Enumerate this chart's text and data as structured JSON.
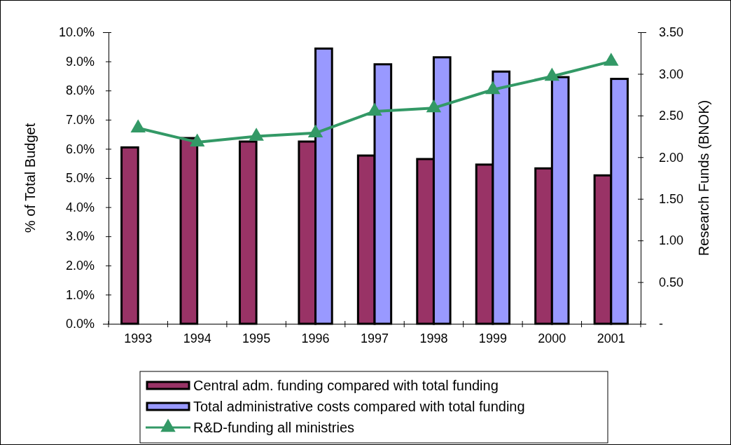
{
  "chart_data": {
    "type": "bar",
    "categories": [
      "1993",
      "1994",
      "1995",
      "1996",
      "1997",
      "1998",
      "1999",
      "2000",
      "2001"
    ],
    "ylabel": "% of Total Budget",
    "y2label": "Research Funds (BNOK)",
    "ylim": [
      0,
      10
    ],
    "yticks": [
      {
        "value": 0,
        "label": "0.0%"
      },
      {
        "value": 1,
        "label": "1.0%"
      },
      {
        "value": 2,
        "label": "2.0%"
      },
      {
        "value": 3,
        "label": "3.0%"
      },
      {
        "value": 4,
        "label": "4.0%"
      },
      {
        "value": 5,
        "label": "5.0%"
      },
      {
        "value": 6,
        "label": "6.0%"
      },
      {
        "value": 7,
        "label": "7.0%"
      },
      {
        "value": 8,
        "label": "8.0%"
      },
      {
        "value": 9,
        "label": "9.0%"
      },
      {
        "value": 10,
        "label": "10.0%"
      }
    ],
    "y2lim": [
      0,
      3.5
    ],
    "y2ticks": [
      {
        "value": 0,
        "label": "-"
      },
      {
        "value": 0.5,
        "label": "0.50"
      },
      {
        "value": 1,
        "label": "1.00"
      },
      {
        "value": 1.5,
        "label": "1.50"
      },
      {
        "value": 2,
        "label": "2.00"
      },
      {
        "value": 2.5,
        "label": "2.50"
      },
      {
        "value": 3,
        "label": "3.00"
      },
      {
        "value": 3.5,
        "label": "3.50"
      }
    ],
    "series": [
      {
        "name": "Central adm. funding compared with total funding",
        "color": "#993366",
        "values": [
          6.05,
          6.37,
          6.25,
          6.25,
          5.77,
          5.65,
          5.46,
          5.33,
          5.09
        ]
      },
      {
        "name": "Total administrative costs  compared with total funding",
        "color": "#9999ff",
        "values": [
          null,
          null,
          null,
          9.44,
          8.9,
          9.14,
          8.65,
          8.46,
          8.4
        ]
      },
      {
        "name": "R&D-funding all ministries",
        "type": "line",
        "axis": "y2",
        "color": "#339966",
        "marker": "triangle",
        "values": [
          2.35,
          2.18,
          2.25,
          2.29,
          2.55,
          2.59,
          2.81,
          2.97,
          3.15
        ]
      }
    ],
    "grid": false,
    "legend": "bottom"
  }
}
